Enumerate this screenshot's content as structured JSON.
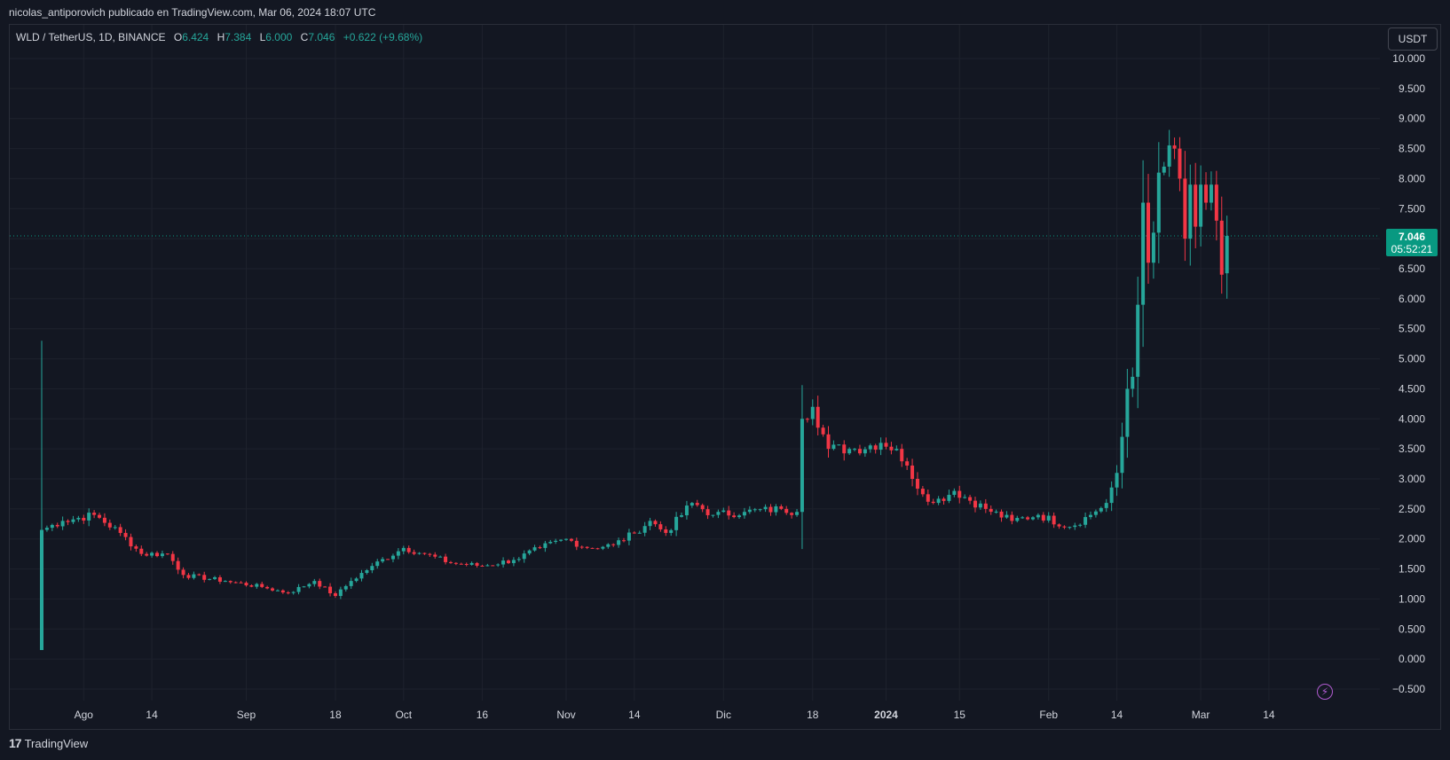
{
  "header": {
    "publisher_text": "nicolas_antiporovich publicado en TradingView.com, Mar 06, 2024 18:07 UTC"
  },
  "legend": {
    "symbol": "WLD / TetherUS, 1D, BINANCE",
    "o_label": "O",
    "o_value": "6.424",
    "h_label": "H",
    "h_value": "7.384",
    "l_label": "L",
    "l_value": "6.000",
    "c_label": "C",
    "c_value": "7.046",
    "change": "+0.622 (+9.68%)"
  },
  "currency_label": "USDT",
  "last_price": {
    "price": "7.046",
    "countdown": "05:52:21"
  },
  "footer": {
    "logo_glyph": "17",
    "brand": "TradingView"
  },
  "colors": {
    "up": "#26a69a",
    "down": "#f23645",
    "background": "#131722",
    "grid": "#1e222d",
    "price_tag": "#089981",
    "text": "#d1d4dc"
  },
  "chart_data": {
    "type": "candlestick",
    "symbol": "WLD/USDT",
    "interval": "1D",
    "exchange": "BINANCE",
    "y_axis": {
      "range": [
        -0.75,
        10.15
      ],
      "ticks": [
        "10.000",
        "9.500",
        "9.000",
        "8.500",
        "8.000",
        "7.500",
        "7.000",
        "6.500",
        "6.000",
        "5.500",
        "5.000",
        "4.500",
        "4.000",
        "3.500",
        "3.000",
        "2.500",
        "2.000",
        "1.500",
        "1.000",
        "0.500",
        "0.000",
        "−0.500"
      ],
      "tick_values": [
        10,
        9.5,
        9,
        8.5,
        8,
        7.5,
        7,
        6.5,
        6,
        5.5,
        5,
        4.5,
        4,
        3.5,
        3,
        2.5,
        2,
        1.5,
        1,
        0.5,
        0,
        -0.5
      ]
    },
    "x_axis": {
      "start_date": "2023-07-24",
      "end_date": "2024-03-17",
      "tick_labels": [
        {
          "label": "Ago",
          "date": "2023-08-01"
        },
        {
          "label": "14",
          "date": "2023-08-14"
        },
        {
          "label": "Sep",
          "date": "2023-09-01"
        },
        {
          "label": "18",
          "date": "2023-09-18"
        },
        {
          "label": "Oct",
          "date": "2023-10-01"
        },
        {
          "label": "16",
          "date": "2023-10-16"
        },
        {
          "label": "Nov",
          "date": "2023-11-01"
        },
        {
          "label": "14",
          "date": "2023-11-14"
        },
        {
          "label": "Dic",
          "date": "2023-12-01"
        },
        {
          "label": "18",
          "date": "2023-12-18"
        },
        {
          "label": "2024",
          "date": "2024-01-01"
        },
        {
          "label": "15",
          "date": "2024-01-15"
        },
        {
          "label": "Feb",
          "date": "2024-02-01"
        },
        {
          "label": "14",
          "date": "2024-02-14"
        },
        {
          "label": "Mar",
          "date": "2024-03-01"
        },
        {
          "label": "14",
          "date": "2024-03-14"
        }
      ]
    },
    "grid": true,
    "last_close": 7.046,
    "anchors": [
      {
        "date": "2023-07-24",
        "close": 2.15
      },
      {
        "date": "2023-07-28",
        "close": 2.3
      },
      {
        "date": "2023-08-03",
        "close": 2.4
      },
      {
        "date": "2023-08-08",
        "close": 2.1
      },
      {
        "date": "2023-08-12",
        "close": 1.75
      },
      {
        "date": "2023-08-17",
        "close": 1.75
      },
      {
        "date": "2023-08-20",
        "close": 1.4
      },
      {
        "date": "2023-08-28",
        "close": 1.3
      },
      {
        "date": "2023-09-04",
        "close": 1.2
      },
      {
        "date": "2023-09-09",
        "close": 1.1
      },
      {
        "date": "2023-09-14",
        "close": 1.3
      },
      {
        "date": "2023-09-18",
        "close": 1.05
      },
      {
        "date": "2023-09-21",
        "close": 1.3
      },
      {
        "date": "2023-09-25",
        "close": 1.55
      },
      {
        "date": "2023-10-01",
        "close": 1.85
      },
      {
        "date": "2023-10-05",
        "close": 1.75
      },
      {
        "date": "2023-10-10",
        "close": 1.6
      },
      {
        "date": "2023-10-16",
        "close": 1.55
      },
      {
        "date": "2023-10-22",
        "close": 1.65
      },
      {
        "date": "2023-10-27",
        "close": 1.85
      },
      {
        "date": "2023-11-01",
        "close": 2.0
      },
      {
        "date": "2023-11-05",
        "close": 1.85
      },
      {
        "date": "2023-11-10",
        "close": 1.9
      },
      {
        "date": "2023-11-14",
        "close": 2.1
      },
      {
        "date": "2023-11-17",
        "close": 2.3
      },
      {
        "date": "2023-11-20",
        "close": 2.1
      },
      {
        "date": "2023-11-25",
        "close": 2.6
      },
      {
        "date": "2023-11-29",
        "close": 2.4
      },
      {
        "date": "2023-12-05",
        "close": 2.45
      },
      {
        "date": "2023-12-12",
        "close": 2.5
      },
      {
        "date": "2023-12-15",
        "close": 2.45
      },
      {
        "date": "2023-12-16",
        "close": 4.0
      },
      {
        "date": "2023-12-18",
        "close": 4.2
      },
      {
        "date": "2023-12-21",
        "close": 3.5
      },
      {
        "date": "2023-12-26",
        "close": 3.5
      },
      {
        "date": "2023-12-31",
        "close": 3.6
      },
      {
        "date": "2024-01-03",
        "close": 3.5
      },
      {
        "date": "2024-01-06",
        "close": 3.0
      },
      {
        "date": "2024-01-10",
        "close": 2.6
      },
      {
        "date": "2024-01-14",
        "close": 2.8
      },
      {
        "date": "2024-01-20",
        "close": 2.5
      },
      {
        "date": "2024-01-25",
        "close": 2.3
      },
      {
        "date": "2024-01-30",
        "close": 2.4
      },
      {
        "date": "2024-02-05",
        "close": 2.2
      },
      {
        "date": "2024-02-09",
        "close": 2.4
      },
      {
        "date": "2024-02-12",
        "close": 2.6
      },
      {
        "date": "2024-02-14",
        "close": 3.1
      },
      {
        "date": "2024-02-15",
        "close": 3.7
      },
      {
        "date": "2024-02-16",
        "close": 4.5
      },
      {
        "date": "2024-02-17",
        "close": 4.7
      },
      {
        "date": "2024-02-18",
        "close": 5.9
      },
      {
        "date": "2024-02-19",
        "close": 7.6
      },
      {
        "date": "2024-02-20",
        "close": 6.6
      },
      {
        "date": "2024-02-21",
        "close": 7.1
      },
      {
        "date": "2024-02-22",
        "close": 8.1
      },
      {
        "date": "2024-02-23",
        "close": 8.2
      },
      {
        "date": "2024-02-25",
        "close": 8.5
      },
      {
        "date": "2024-02-26",
        "close": 8.0
      },
      {
        "date": "2024-02-27",
        "close": 7.0
      },
      {
        "date": "2024-02-28",
        "close": 7.9
      },
      {
        "date": "2024-02-29",
        "close": 7.2
      },
      {
        "date": "2024-03-01",
        "close": 7.9
      },
      {
        "date": "2024-03-02",
        "close": 7.6
      },
      {
        "date": "2024-03-03",
        "close": 7.9
      },
      {
        "date": "2024-03-04",
        "close": 7.3
      },
      {
        "date": "2024-03-05",
        "close": 6.4
      },
      {
        "date": "2024-03-06",
        "close": 7.046
      }
    ]
  }
}
